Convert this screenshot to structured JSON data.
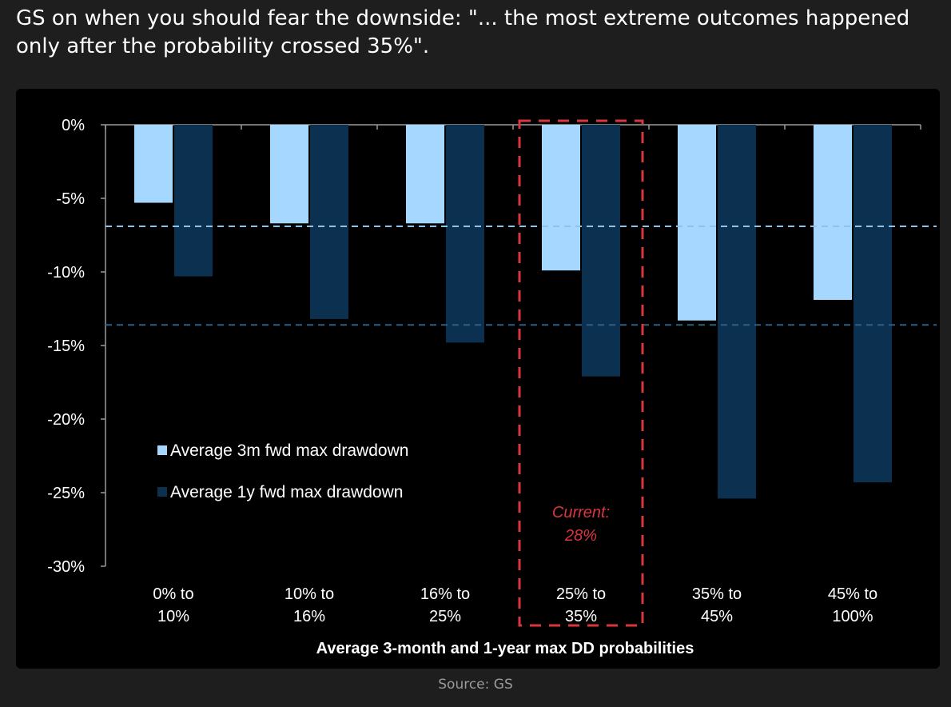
{
  "headline": "GS on when you should fear the downside: \"... the most extreme outcomes happened only after the probability crossed 35%\".",
  "source": "Source: GS",
  "colors": {
    "page_background": "#1e1e1e",
    "chart_background": "#000000",
    "series_3m": "#a6d8ff",
    "series_1y": "#0c3150",
    "reference_line_3m": "#8fc4e8",
    "reference_line_1y": "#2b5f86",
    "highlight_box": "#d9363e",
    "text": "#ffffff"
  },
  "chart_data": {
    "type": "bar",
    "xlabel": "Average 3-month and 1-year max DD probabilities",
    "ylabel": "",
    "ylim": [
      -30,
      0
    ],
    "yticks": [
      "0%",
      "-5%",
      "-10%",
      "-15%",
      "-20%",
      "-25%",
      "-30%"
    ],
    "ytick_values": [
      0,
      -5,
      -10,
      -15,
      -20,
      -25,
      -30
    ],
    "categories": [
      [
        "0% to",
        "10%"
      ],
      [
        "10% to",
        "16%"
      ],
      [
        "16% to",
        "25%"
      ],
      [
        "25% to",
        "35%"
      ],
      [
        "35% to",
        "45%"
      ],
      [
        "45% to",
        "100%"
      ]
    ],
    "series": [
      {
        "name": "Average 3m fwd max drawdown",
        "color_key": "series_3m",
        "values": [
          -5.3,
          -6.7,
          -6.7,
          -9.9,
          -13.3,
          -11.9
        ]
      },
      {
        "name": "Average 1y fwd max drawdown",
        "color_key": "series_1y",
        "values": [
          -10.3,
          -13.2,
          -14.8,
          -17.1,
          -25.4,
          -24.3
        ]
      }
    ],
    "reference_lines": [
      {
        "value": -6.9,
        "style": "dashed",
        "color_key": "reference_line_3m"
      },
      {
        "value": -13.6,
        "style": "dashed",
        "color_key": "reference_line_1y"
      }
    ],
    "highlight": {
      "category_index": 3,
      "label_lines": [
        "Current:",
        "28%"
      ],
      "style": "dashed-box"
    },
    "legend_position": "bottom-left",
    "grid": false
  }
}
